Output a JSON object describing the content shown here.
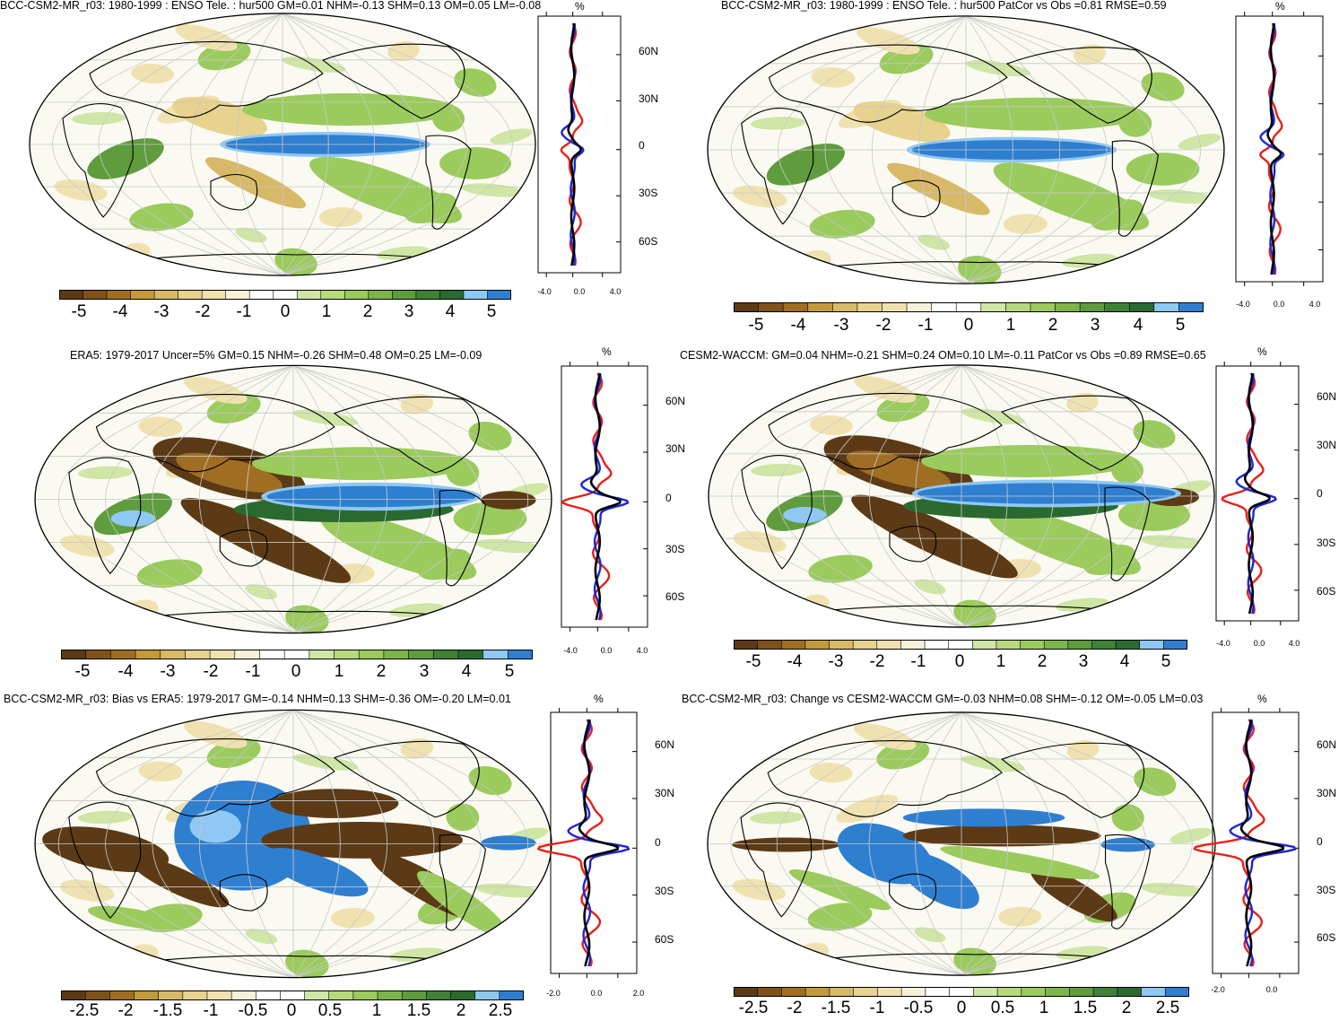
{
  "panels": [
    {
      "title": "BCC-CSM2-MR_r03: 1980-1999 : ENSO Tele. : hur500 GM=0.01 NHM=-0.13 SHM=0.13 OM=0.05 LM=-0.08",
      "profile_unit": "%",
      "lat_labels": [
        "60N",
        "30N",
        "0",
        "30S",
        "60S"
      ],
      "x_ticks": [
        "-4.0",
        "0.0",
        "4.0"
      ],
      "colorbar": [
        "-5",
        "-4",
        "-3",
        "-2",
        "-1",
        "0",
        "1",
        "2",
        "3",
        "4",
        "5"
      ]
    },
    {
      "title": "BCC-CSM2-MR_r03: 1980-1999 : ENSO Tele. : hur500 PatCor vs Obs =0.81 RMSE=0.59",
      "profile_unit": "%",
      "lat_labels": [],
      "x_ticks": [
        "-4.0",
        "0.0",
        "4.0"
      ],
      "colorbar": [
        "-5",
        "-4",
        "-3",
        "-2",
        "-1",
        "0",
        "1",
        "2",
        "3",
        "4",
        "5"
      ]
    },
    {
      "title": "ERA5: 1979-2017 Uncer=5% GM=0.15 NHM=-0.26 SHM=0.48 OM=0.25 LM=-0.09",
      "profile_unit": "%",
      "lat_labels": [
        "60N",
        "30N",
        "0",
        "30S",
        "60S"
      ],
      "x_ticks": [
        "-4.0",
        "0.0",
        "4.0"
      ],
      "colorbar": [
        "-5",
        "-4",
        "-3",
        "-2",
        "-1",
        "0",
        "1",
        "2",
        "3",
        "4",
        "5"
      ]
    },
    {
      "title": "CESM2-WACCM: GM=0.04 NHM=-0.21 SHM=0.24 OM=0.10 LM=-0.11 PatCor vs Obs =0.89 RMSE=0.65",
      "profile_unit": "%",
      "lat_labels": [
        "60N",
        "30N",
        "0",
        "30S",
        "60S"
      ],
      "x_ticks": [
        "-4.0",
        "0.0",
        "4.0"
      ],
      "colorbar": [
        "-5",
        "-4",
        "-3",
        "-2",
        "-1",
        "0",
        "1",
        "2",
        "3",
        "4",
        "5"
      ]
    },
    {
      "title": "BCC-CSM2-MR_r03: Bias vs ERA5: 1979-2017 GM=-0.14 NHM=0.13 SHM=-0.36 OM=-0.20 LM=0.01",
      "profile_unit": "%",
      "lat_labels": [
        "60N",
        "30N",
        "0",
        "30S",
        "60S"
      ],
      "x_ticks": [
        "-2.0",
        "0.0",
        "2.0"
      ],
      "colorbar": [
        "-2.5",
        "-2",
        "-1.5",
        "-1",
        "-0.5",
        "0",
        "0.5",
        "1",
        "1.5",
        "2",
        "2.5"
      ]
    },
    {
      "title": "BCC-CSM2-MR_r03: Change vs CESM2-WACCM GM=-0.03 NHM=0.08 SHM=-0.12 OM=-0.05 LM=0.03",
      "profile_unit": "%",
      "lat_labels": [
        "60N",
        "30N",
        "0",
        "30S",
        "60S"
      ],
      "x_ticks": [
        "-2.0",
        "0.0"
      ],
      "colorbar": [
        "-2.5",
        "-2",
        "-1.5",
        "-1",
        "-0.5",
        "0",
        "0.5",
        "1",
        "1.5",
        "2",
        "2.5"
      ]
    }
  ],
  "colors": {
    "scale": [
      "#5c3a15",
      "#7e5219",
      "#a06e22",
      "#c39a3a",
      "#d8b968",
      "#e7d28e",
      "#f0e2b0",
      "#f8f1d9",
      "#ffffff",
      "#ffffff",
      "#cfe6a6",
      "#b6d97c",
      "#9acb5c",
      "#7db54a",
      "#5f9c3d",
      "#3f8237",
      "#2a6a30",
      "#8fc8f2",
      "#2f7fd1"
    ],
    "profile_red": "#e8201a",
    "profile_blue": "#1b27d6",
    "profile_black": "#000000"
  }
}
